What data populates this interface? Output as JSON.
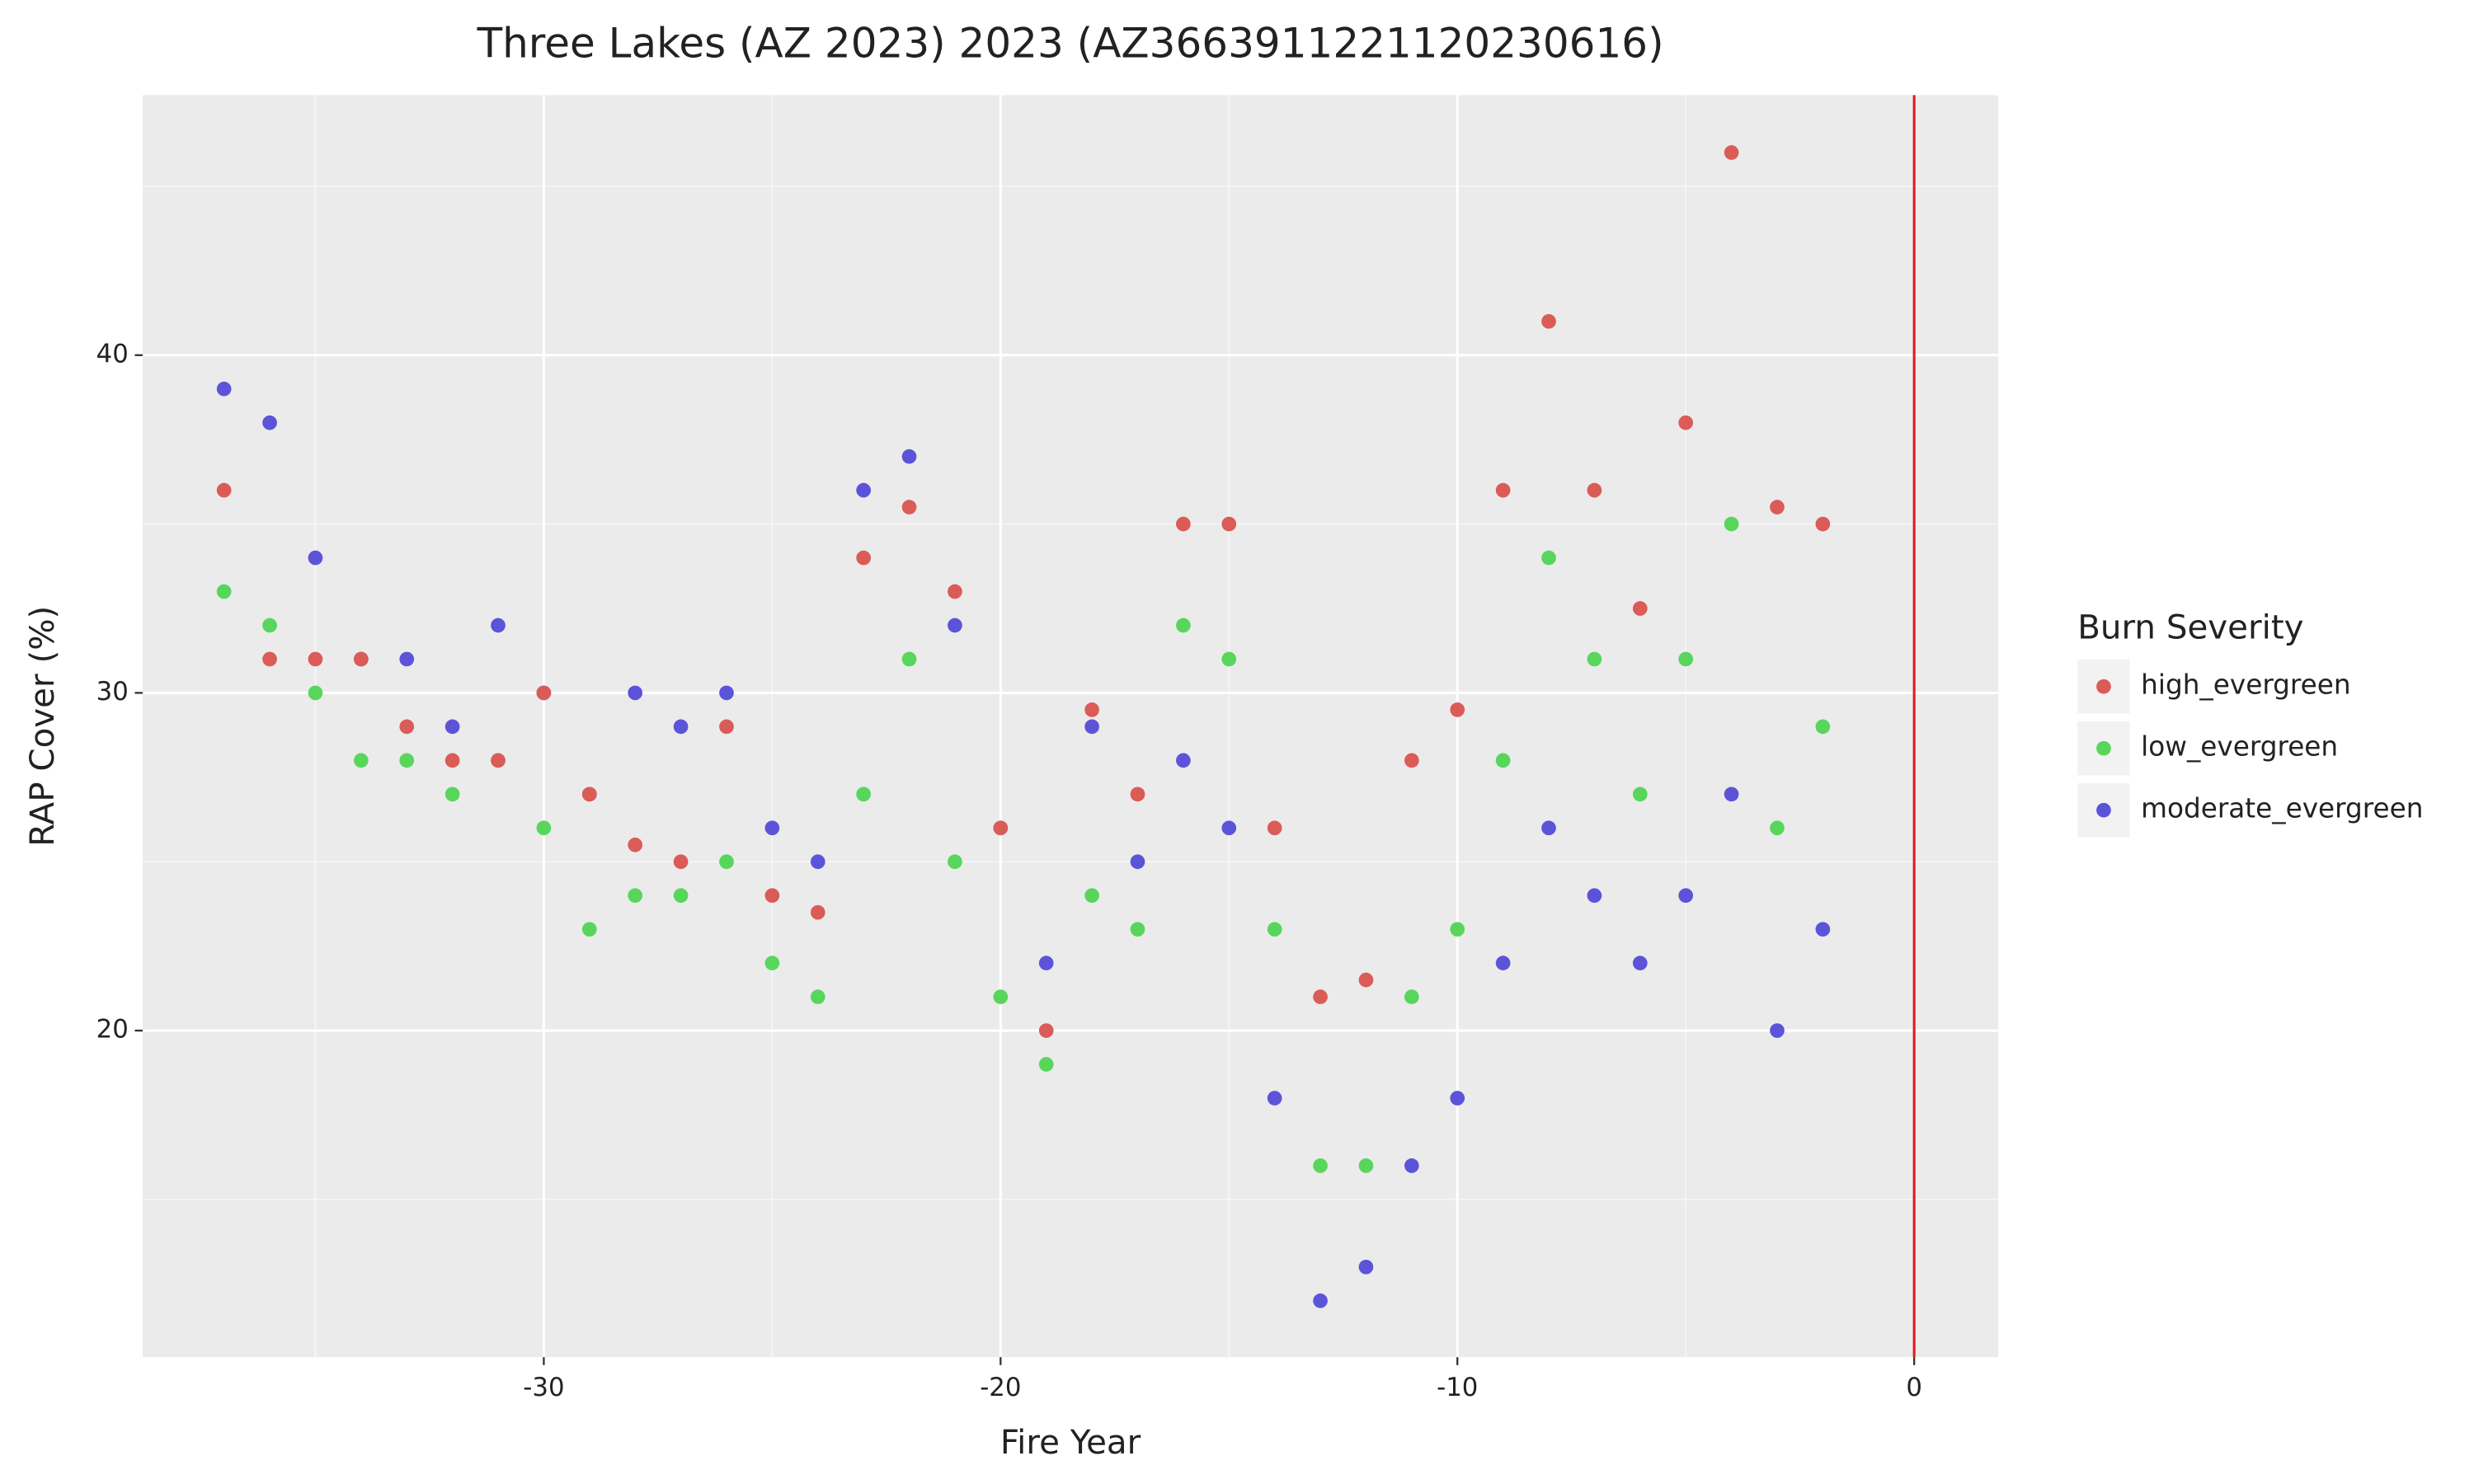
{
  "chart_data": {
    "type": "scatter",
    "title": "Three Lakes (AZ 2023) 2023 (AZ3663911221120230616)",
    "x_label": "Fire Year",
    "y_label": "RAP Cover (%)",
    "legend_title": "Burn Severity",
    "legend_position": "right",
    "x": [
      -37,
      -36,
      -35,
      -34,
      -33,
      -32,
      -31,
      -30,
      -29,
      -28,
      -27,
      -26,
      -25,
      -24,
      -23,
      -22,
      -21,
      -20,
      -19,
      -18,
      -17,
      -16,
      -15,
      -14,
      -13,
      -12,
      -11,
      -10,
      -9,
      -8,
      -7,
      -6,
      -5,
      -4,
      -3,
      -2
    ],
    "series": [
      {
        "name": "high_evergreen",
        "color": "#db5b57",
        "values": [
          36,
          31,
          31,
          31,
          29,
          28,
          28,
          30,
          27,
          25.5,
          25,
          29,
          24,
          23.5,
          34,
          35.5,
          33,
          26,
          20,
          29.5,
          27,
          35,
          35,
          26,
          21,
          21.5,
          28,
          29.5,
          36,
          41,
          36,
          32.5,
          38,
          46,
          35.5,
          35
        ]
      },
      {
        "name": "low_evergreen",
        "color": "#58d65c",
        "values": [
          33,
          32,
          30,
          28,
          28,
          27,
          28,
          26,
          23,
          24,
          24,
          25,
          22,
          21,
          27,
          31,
          25,
          21,
          19,
          24,
          23,
          32,
          31,
          23,
          16,
          16,
          21,
          23,
          28,
          34,
          31,
          27,
          31,
          35,
          26,
          29
        ]
      },
      {
        "name": "moderate_evergreen",
        "color": "#5c54d8",
        "values": [
          39,
          38,
          34,
          31,
          31,
          29,
          32,
          30,
          27,
          30,
          29,
          30,
          26,
          25,
          36,
          37,
          32,
          26,
          22,
          29,
          25,
          28,
          26,
          18,
          12,
          13,
          16,
          18,
          22,
          26,
          24,
          22,
          24,
          27,
          20,
          23
        ]
      }
    ],
    "xlim": [
      -38.78,
      1.84
    ],
    "ylim": [
      10.33,
      47.7
    ],
    "xticks": [
      -30,
      -20,
      -10,
      0
    ],
    "yticks": [
      20,
      30,
      40
    ],
    "x_minor_ticks": [
      -35,
      -25,
      -15,
      -5
    ],
    "y_minor_ticks": [
      15,
      25,
      35,
      45
    ],
    "grid": true,
    "vline": {
      "x": 0,
      "color": "#e41a1c"
    }
  }
}
